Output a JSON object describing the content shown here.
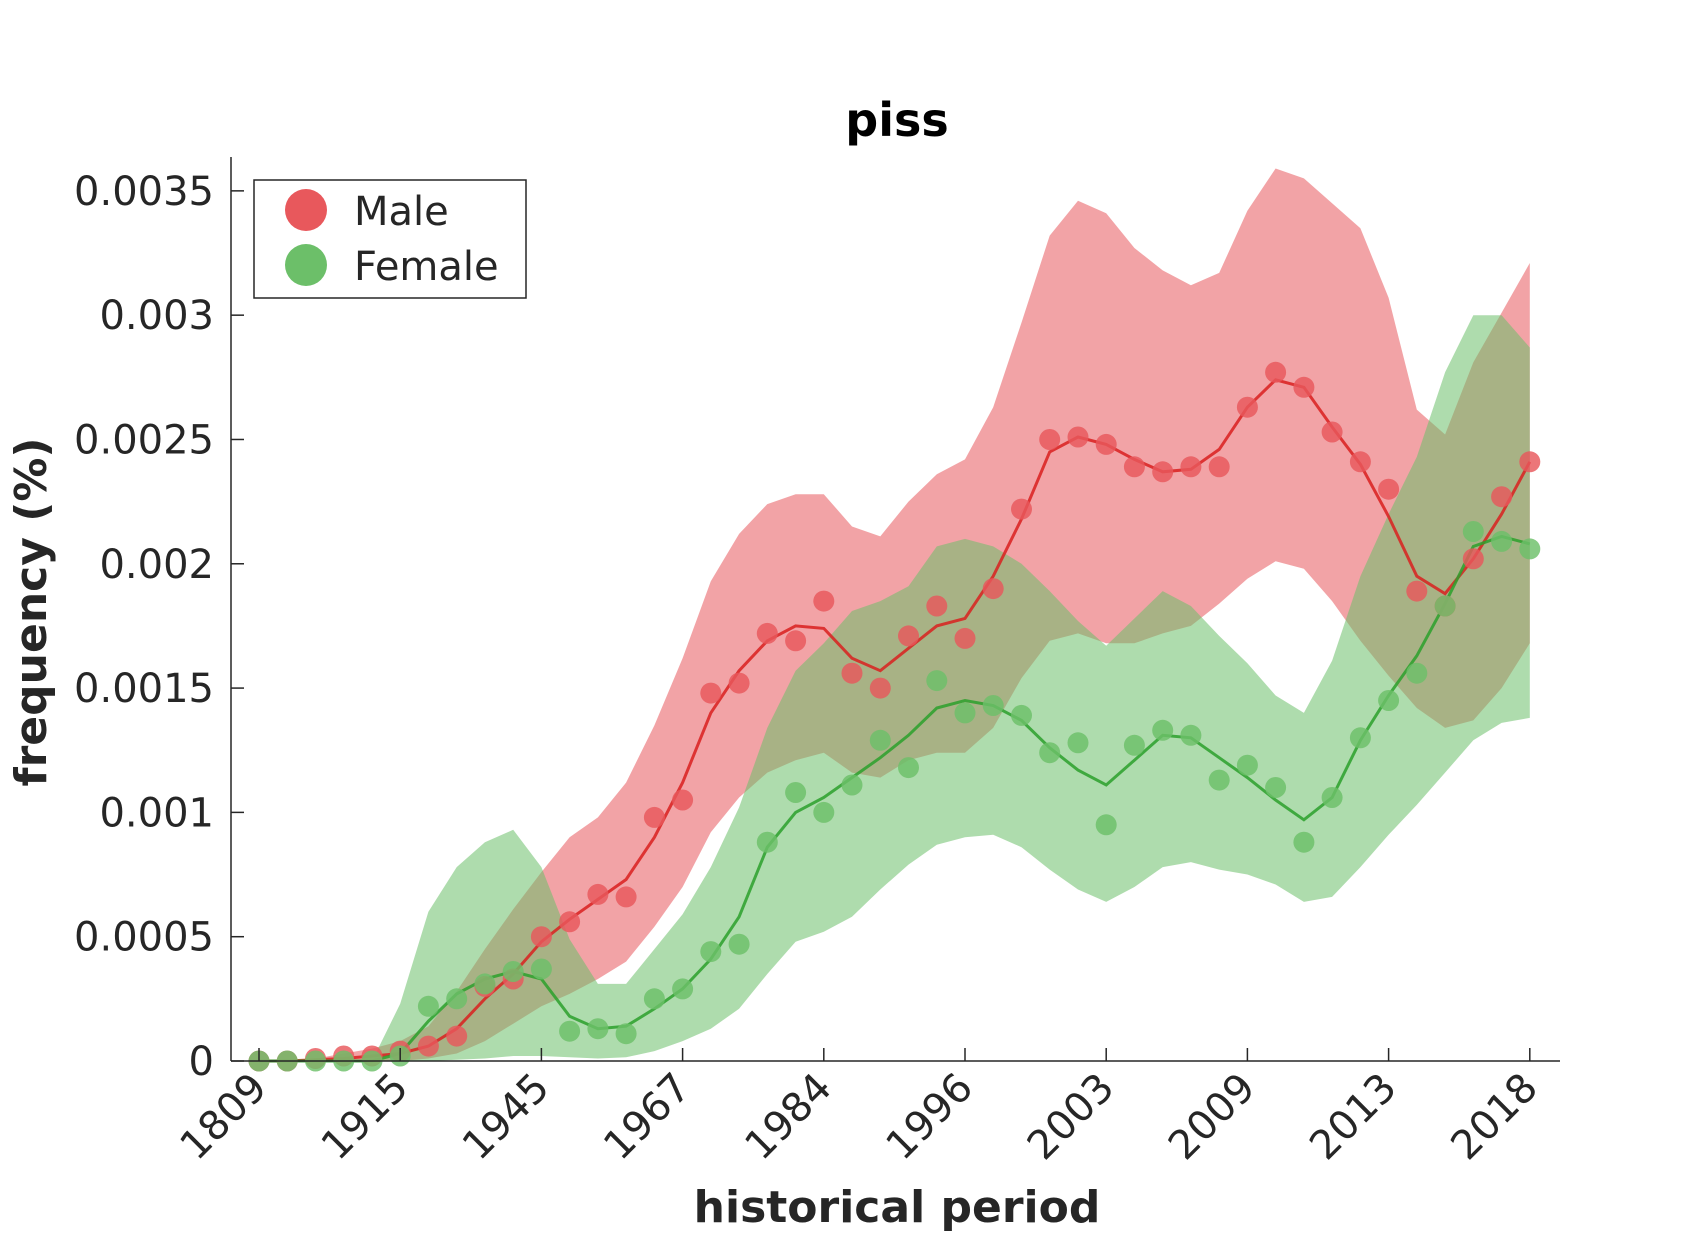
{
  "chart_data": {
    "type": "line",
    "title": "piss",
    "xlabel": "historical period",
    "ylabel": "frequency (%)",
    "ylim": [
      0,
      0.0036
    ],
    "yticks": [
      0,
      0.0005,
      0.001,
      0.0015,
      0.002,
      0.0025,
      0.003,
      0.0035
    ],
    "ytick_labels": [
      "0",
      "0.0005",
      "0.001",
      "0.0015",
      "0.002",
      "0.0025",
      "0.003",
      "0.0035"
    ],
    "xtick_labels": [
      "1809",
      "1915",
      "1945",
      "1967",
      "1984",
      "1996",
      "2003",
      "2009",
      "2013",
      "2018"
    ],
    "xtick_index": [
      0,
      5,
      10,
      15,
      20,
      25,
      30,
      35,
      40,
      45
    ],
    "n_points": 46,
    "legend_position": "top-left",
    "series": [
      {
        "name": "Male",
        "marker_color": "#e8585c",
        "line_color": "#d9201f",
        "band_color": "#e8585c",
        "points": [
          0,
          0,
          1e-05,
          2e-05,
          2e-05,
          4e-05,
          6e-05,
          0.0001,
          0.0003,
          0.00033,
          0.0005,
          0.00056,
          0.00067,
          0.00066,
          0.00098,
          0.00105,
          0.00148,
          0.00152,
          0.00172,
          0.00169,
          0.00185,
          0.00156,
          0.0015,
          0.00171,
          0.00183,
          0.0017,
          0.0019,
          0.00222,
          0.0025,
          0.00251,
          0.00248,
          0.00239,
          0.00237,
          0.00239,
          0.00239,
          0.00263,
          0.00277,
          0.00271,
          0.00253,
          0.00241,
          0.0023,
          0.00189,
          0.00183,
          0.00202,
          0.00227,
          0.00241
        ],
        "line": [
          0,
          0,
          5e-06,
          1e-05,
          2e-05,
          3e-05,
          6e-05,
          0.00013,
          0.00025,
          0.00035,
          0.00048,
          0.00057,
          0.00065,
          0.00073,
          0.0009,
          0.00112,
          0.0014,
          0.00157,
          0.00169,
          0.00175,
          0.00174,
          0.00162,
          0.00157,
          0.00166,
          0.00175,
          0.00178,
          0.00195,
          0.00218,
          0.00245,
          0.00251,
          0.00248,
          0.00242,
          0.00237,
          0.00238,
          0.00246,
          0.00263,
          0.00274,
          0.00271,
          0.00255,
          0.0024,
          0.00219,
          0.00195,
          0.00188,
          0.00202,
          0.0022,
          0.00241
        ],
        "band_upper": [
          0,
          5e-06,
          1e-05,
          3e-05,
          5e-05,
          8e-05,
          0.00014,
          0.00028,
          0.00045,
          0.00061,
          0.00076,
          0.0009,
          0.00098,
          0.00112,
          0.00135,
          0.00162,
          0.00193,
          0.00212,
          0.00224,
          0.00228,
          0.00228,
          0.00215,
          0.00211,
          0.00225,
          0.00236,
          0.00242,
          0.00263,
          0.00297,
          0.00332,
          0.00346,
          0.00341,
          0.00327,
          0.00318,
          0.00312,
          0.00317,
          0.00342,
          0.00359,
          0.00355,
          0.00345,
          0.00335,
          0.00307,
          0.00262,
          0.00252,
          0.00281,
          0.00301,
          0.00321
        ],
        "band_lower": [
          0,
          0,
          0,
          0,
          0,
          0,
          1e-05,
          3e-05,
          8e-05,
          0.00015,
          0.00022,
          0.00027,
          0.00033,
          0.0004,
          0.00054,
          0.0007,
          0.00092,
          0.00106,
          0.00116,
          0.00121,
          0.00124,
          0.00116,
          0.00114,
          0.00121,
          0.00124,
          0.00124,
          0.00134,
          0.00154,
          0.00169,
          0.00172,
          0.00168,
          0.00168,
          0.00172,
          0.00175,
          0.00184,
          0.00194,
          0.00201,
          0.00198,
          0.00185,
          0.00169,
          0.00155,
          0.00142,
          0.00134,
          0.00137,
          0.0015,
          0.00168
        ]
      },
      {
        "name": "Female",
        "marker_color": "#6cbf69",
        "line_color": "#2ca02c",
        "band_color": "#6cbf69",
        "points": [
          0,
          0,
          0,
          0,
          0,
          2e-05,
          0.00022,
          0.00025,
          0.00031,
          0.00036,
          0.00037,
          0.00012,
          0.00013,
          0.00011,
          0.00025,
          0.00029,
          0.00044,
          0.00047,
          0.00088,
          0.00108,
          0.001,
          0.00111,
          0.00129,
          0.00118,
          0.00153,
          0.0014,
          0.00143,
          0.00139,
          0.00124,
          0.00128,
          0.00095,
          0.00127,
          0.00133,
          0.00131,
          0.00113,
          0.00119,
          0.0011,
          0.00088,
          0.00106,
          0.0013,
          0.00145,
          0.00156,
          0.00183,
          0.00213,
          0.00209,
          0.00206
        ],
        "line": [
          0,
          0,
          0,
          0,
          0,
          3e-05,
          0.00016,
          0.00027,
          0.00033,
          0.00036,
          0.00033,
          0.00018,
          0.00013,
          0.00014,
          0.00021,
          0.00029,
          0.00041,
          0.00058,
          0.00086,
          0.001,
          0.00106,
          0.00114,
          0.00122,
          0.00131,
          0.00142,
          0.00145,
          0.00143,
          0.00137,
          0.00126,
          0.00117,
          0.00111,
          0.00121,
          0.00131,
          0.0013,
          0.00122,
          0.00114,
          0.00105,
          0.00097,
          0.00106,
          0.00129,
          0.00147,
          0.00163,
          0.00184,
          0.00207,
          0.00211,
          0.00208
        ],
        "band_upper": [
          0,
          0,
          0,
          0,
          0,
          0.00023,
          0.0006,
          0.00078,
          0.00088,
          0.00093,
          0.00078,
          0.00049,
          0.00031,
          0.00031,
          0.00045,
          0.00059,
          0.00078,
          0.00102,
          0.00134,
          0.00157,
          0.00168,
          0.00181,
          0.00185,
          0.00191,
          0.00207,
          0.0021,
          0.00207,
          0.002,
          0.00189,
          0.00177,
          0.00167,
          0.00178,
          0.00189,
          0.00183,
          0.00171,
          0.0016,
          0.00147,
          0.0014,
          0.00161,
          0.00195,
          0.0022,
          0.00243,
          0.00277,
          0.003,
          0.003,
          0.00287
        ],
        "band_lower": [
          0,
          0,
          0,
          0,
          0,
          0,
          0,
          5e-06,
          1e-05,
          2e-05,
          2e-05,
          1.5e-05,
          1e-05,
          1.5e-05,
          4e-05,
          8e-05,
          0.00013,
          0.00021,
          0.00035,
          0.00048,
          0.00052,
          0.00058,
          0.00069,
          0.00079,
          0.00087,
          0.0009,
          0.00091,
          0.00086,
          0.00077,
          0.00069,
          0.00064,
          0.0007,
          0.00078,
          0.0008,
          0.00077,
          0.00075,
          0.00071,
          0.00064,
          0.00066,
          0.00078,
          0.00091,
          0.00103,
          0.00116,
          0.00129,
          0.00136,
          0.00138
        ]
      }
    ]
  }
}
